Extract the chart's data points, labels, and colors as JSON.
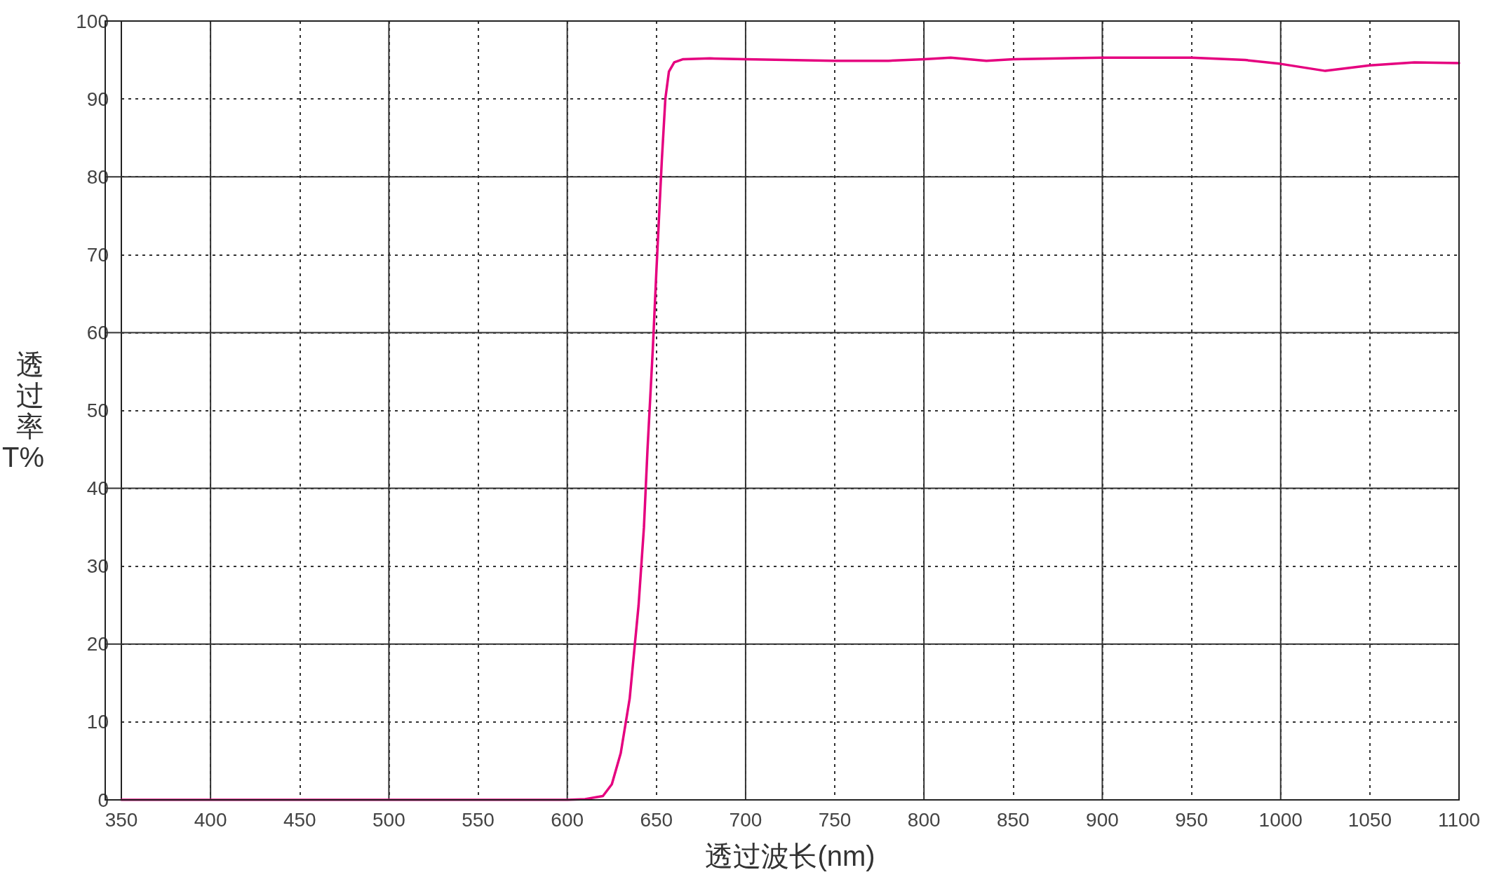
{
  "chart_data": {
    "type": "line",
    "xlabel": "透过波长(nm)",
    "ylabel": "透过率T%",
    "x": [
      350,
      400,
      500,
      580,
      600,
      610,
      620,
      625,
      630,
      635,
      640,
      643,
      645,
      648,
      650,
      653,
      655,
      657,
      660,
      665,
      680,
      700,
      750,
      780,
      800,
      815,
      835,
      850,
      900,
      950,
      980,
      1000,
      1025,
      1050,
      1075,
      1100
    ],
    "series": [
      {
        "color": "#e5007f",
        "values": [
          0,
          0,
          0,
          0,
          0,
          0.1,
          0.5,
          2,
          6,
          13,
          25,
          35,
          45,
          58,
          68,
          82,
          90,
          93.5,
          94.7,
          95.1,
          95.2,
          95.1,
          94.9,
          94.9,
          95.1,
          95.3,
          94.9,
          95.1,
          95.3,
          95.3,
          95.0,
          94.5,
          93.6,
          94.3,
          94.7,
          94.6
        ]
      }
    ],
    "xlim": [
      350,
      1100
    ],
    "xticks": [
      350,
      400,
      450,
      500,
      550,
      600,
      650,
      700,
      750,
      800,
      850,
      900,
      950,
      1000,
      1050,
      1100
    ],
    "ylim": [
      0,
      100
    ],
    "yticks": [
      0,
      10,
      20,
      30,
      40,
      50,
      60,
      70,
      80,
      90,
      100
    ],
    "grid": true,
    "marker": "none",
    "line_style": "solid"
  }
}
